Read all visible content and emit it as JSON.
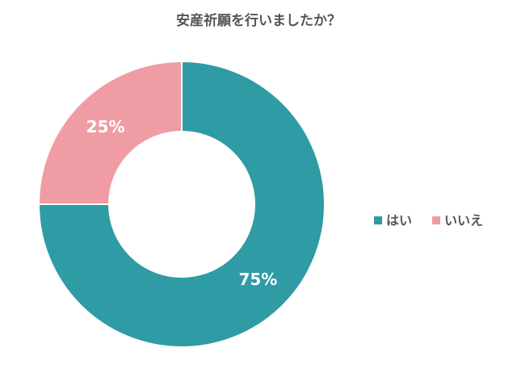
{
  "chart_data": {
    "type": "donut",
    "title": "安産祈願を行いましたか？",
    "categories": [
      "はい",
      "いいえ"
    ],
    "values": [
      75,
      25
    ],
    "value_labels": [
      "75%",
      "25%"
    ],
    "colors": [
      "#2f9ba4",
      "#ef9ca5"
    ],
    "legend": "right"
  }
}
